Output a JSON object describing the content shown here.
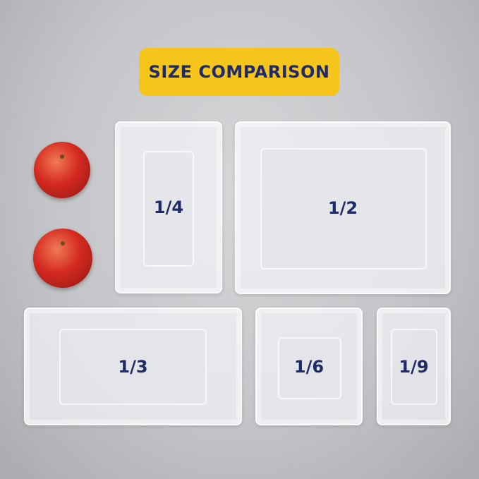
{
  "title": "SIZE COMPARISON",
  "colors": {
    "badge": "#f6c51b",
    "label": "#1f2a6b"
  },
  "pans": [
    {
      "label": "1/4"
    },
    {
      "label": "1/2"
    },
    {
      "label": "1/3"
    },
    {
      "label": "1/6"
    },
    {
      "label": "1/9"
    }
  ]
}
